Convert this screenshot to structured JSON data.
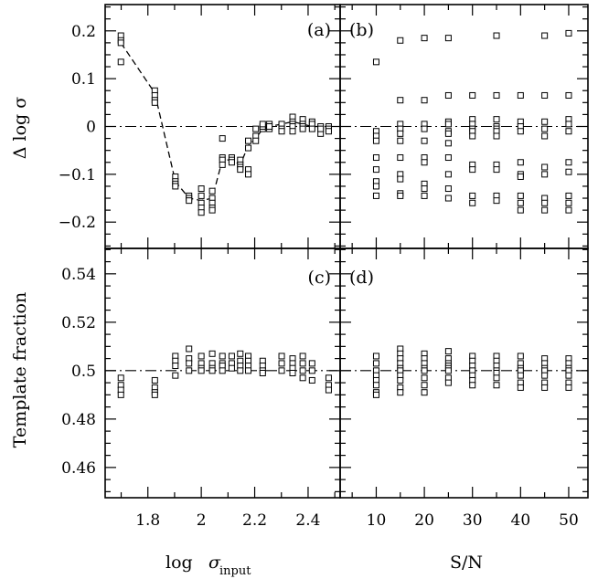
{
  "figure": {
    "x_bottom_left_label": "log",
    "x_bottom_left_symbol": "σ",
    "x_bottom_left_subscript": "input",
    "x_bottom_right_label": "S/N",
    "y_top_label": "Δ log σ",
    "y_bottom_label": "Template fraction"
  },
  "chart_data": [
    {
      "panel": "(a)",
      "type": "scatter",
      "marker": "open-square",
      "xlabel": "",
      "ylabel": "Δ log σ",
      "xlim": [
        1.64,
        2.52
      ],
      "ylim": [
        -0.255,
        0.255
      ],
      "xticks": [
        1.8,
        2.0,
        2.2,
        2.4
      ],
      "xtick_labels": [
        "",
        "",
        "",
        ""
      ],
      "yticks": [
        -0.2,
        -0.1,
        0,
        0.1,
        0.2
      ],
      "ytick_labels": [
        "−0.2",
        "−0.1",
        "0",
        "0.1",
        "0.2"
      ],
      "reference_line": {
        "y": 0,
        "style": "dash-dot"
      },
      "fit_line": {
        "style": "dashed",
        "x": [
          1.699,
          1.826,
          1.903,
          1.954,
          2.0,
          2.041,
          2.079,
          2.114,
          2.146,
          2.176,
          2.204,
          2.23,
          2.255,
          2.301,
          2.342,
          2.38,
          2.415,
          2.447,
          2.477
        ],
        "y": [
          0.175,
          0.07,
          -0.115,
          -0.15,
          -0.155,
          -0.15,
          -0.07,
          -0.07,
          -0.08,
          -0.04,
          -0.025,
          -0.005,
          0.0,
          0.005,
          0.01,
          0.005,
          0.0,
          0.0,
          0.0
        ]
      },
      "points": {
        "x": [
          1.699,
          1.699,
          1.699,
          1.699,
          1.826,
          1.826,
          1.826,
          1.826,
          1.903,
          1.903,
          1.903,
          1.903,
          1.954,
          1.954,
          1.954,
          2.0,
          2.0,
          2.0,
          2.0,
          2.0,
          2.041,
          2.041,
          2.041,
          2.041,
          2.041,
          2.079,
          2.079,
          2.079,
          2.079,
          2.114,
          2.114,
          2.114,
          2.146,
          2.146,
          2.146,
          2.146,
          2.176,
          2.176,
          2.176,
          2.176,
          2.204,
          2.204,
          2.204,
          2.23,
          2.23,
          2.23,
          2.255,
          2.255,
          2.255,
          2.301,
          2.301,
          2.301,
          2.301,
          2.342,
          2.342,
          2.342,
          2.342,
          2.342,
          2.38,
          2.38,
          2.38,
          2.38,
          2.415,
          2.415,
          2.415,
          2.447,
          2.447,
          2.447,
          2.477,
          2.477,
          2.477
        ],
        "y": [
          0.19,
          0.18,
          0.175,
          0.135,
          0.075,
          0.065,
          0.055,
          0.05,
          -0.105,
          -0.115,
          -0.12,
          -0.125,
          -0.145,
          -0.15,
          -0.155,
          -0.13,
          -0.145,
          -0.16,
          -0.17,
          -0.18,
          -0.135,
          -0.15,
          -0.16,
          -0.17,
          -0.175,
          -0.025,
          -0.065,
          -0.07,
          -0.08,
          -0.065,
          -0.07,
          -0.075,
          -0.07,
          -0.08,
          -0.085,
          -0.09,
          -0.03,
          -0.045,
          -0.09,
          -0.1,
          -0.02,
          -0.03,
          -0.005,
          -0.005,
          0.0,
          0.005,
          -0.005,
          0.005,
          0.0,
          0.0,
          0.005,
          -0.005,
          -0.01,
          0.02,
          0.01,
          0.005,
          0.0,
          -0.01,
          0.015,
          0.005,
          0.0,
          -0.005,
          0.01,
          0.005,
          -0.005,
          -0.015,
          0.0,
          -0.005,
          0.0,
          -0.005,
          -0.01
        ]
      }
    },
    {
      "panel": "(b)",
      "type": "scatter",
      "marker": "open-square",
      "xlabel": "",
      "ylabel": "",
      "xlim": [
        2.5,
        54
      ],
      "ylim": [
        -0.255,
        0.255
      ],
      "xticks": [
        10,
        20,
        30,
        40,
        50
      ],
      "xtick_labels": [
        "",
        "",
        "",
        "",
        ""
      ],
      "reference_line": {
        "y": 0,
        "style": "dash-dot"
      },
      "points": {
        "x": [
          10,
          10,
          10,
          10,
          10,
          10,
          10,
          10,
          10,
          15,
          15,
          15,
          15,
          15,
          15,
          15,
          15,
          15,
          15,
          15,
          20,
          20,
          20,
          20,
          20,
          20,
          20,
          20,
          20,
          20,
          25,
          25,
          25,
          25,
          25,
          25,
          25,
          25,
          25,
          25,
          25,
          30,
          30,
          30,
          30,
          30,
          30,
          30,
          30,
          30,
          30,
          35,
          35,
          35,
          35,
          35,
          35,
          35,
          35,
          35,
          35,
          35,
          40,
          40,
          40,
          40,
          40,
          40,
          40,
          40,
          40,
          40,
          45,
          45,
          45,
          45,
          45,
          45,
          45,
          45,
          45,
          45,
          50,
          50,
          50,
          50,
          50,
          50,
          50,
          50,
          50,
          50
        ],
        "y": [
          0.135,
          -0.01,
          -0.02,
          -0.03,
          -0.065,
          -0.09,
          -0.115,
          -0.125,
          -0.145,
          0.18,
          0.055,
          0.005,
          -0.005,
          -0.015,
          -0.03,
          -0.065,
          -0.1,
          -0.11,
          -0.14,
          -0.145,
          0.185,
          0.055,
          0.005,
          -0.005,
          -0.03,
          -0.065,
          -0.075,
          -0.12,
          -0.13,
          -0.145,
          0.185,
          0.065,
          0.01,
          0.005,
          -0.01,
          -0.015,
          -0.035,
          -0.065,
          -0.1,
          -0.13,
          -0.15,
          0.065,
          0.015,
          0.005,
          -0.005,
          -0.01,
          -0.02,
          -0.08,
          -0.09,
          -0.145,
          -0.16,
          0.19,
          0.065,
          0.015,
          0.0,
          -0.005,
          -0.01,
          -0.02,
          -0.08,
          -0.09,
          -0.145,
          -0.155,
          0.065,
          0.01,
          0.0,
          -0.01,
          -0.075,
          -0.1,
          -0.105,
          -0.145,
          -0.16,
          -0.175,
          0.19,
          0.065,
          0.01,
          -0.005,
          -0.02,
          -0.085,
          -0.1,
          -0.15,
          -0.16,
          -0.175,
          0.195,
          0.065,
          0.015,
          0.005,
          -0.01,
          -0.075,
          -0.095,
          -0.145,
          -0.16,
          -0.175
        ]
      }
    },
    {
      "panel": "(c)",
      "type": "scatter",
      "marker": "open-square",
      "xlabel": "log σinput",
      "ylabel": "Template fraction",
      "xlim": [
        1.64,
        2.52
      ],
      "ylim": [
        0.4475,
        0.5505
      ],
      "xticks": [
        1.8,
        2.0,
        2.2,
        2.4
      ],
      "xtick_labels": [
        "1.8",
        "2",
        "2.2",
        "2.4"
      ],
      "yticks": [
        0.46,
        0.48,
        0.5,
        0.52,
        0.54
      ],
      "ytick_labels": [
        "0.46",
        "0.48",
        "0.5",
        "0.52",
        "0.54"
      ],
      "reference_line": {
        "y": 0.5,
        "style": "dash-dot"
      },
      "points": {
        "x": [
          1.699,
          1.699,
          1.699,
          1.699,
          1.826,
          1.826,
          1.826,
          1.826,
          1.903,
          1.903,
          1.903,
          1.903,
          1.954,
          1.954,
          1.954,
          1.954,
          2.0,
          2.0,
          2.0,
          2.0,
          2.041,
          2.041,
          2.041,
          2.041,
          2.079,
          2.079,
          2.079,
          2.079,
          2.114,
          2.114,
          2.114,
          2.146,
          2.146,
          2.146,
          2.146,
          2.176,
          2.176,
          2.176,
          2.176,
          2.23,
          2.23,
          2.23,
          2.23,
          2.301,
          2.301,
          2.301,
          2.342,
          2.342,
          2.342,
          2.342,
          2.38,
          2.38,
          2.38,
          2.38,
          2.415,
          2.415,
          2.415,
          2.477,
          2.477,
          2.477
        ],
        "y": [
          0.497,
          0.494,
          0.492,
          0.49,
          0.496,
          0.493,
          0.491,
          0.49,
          0.506,
          0.504,
          0.502,
          0.498,
          0.509,
          0.505,
          0.503,
          0.5,
          0.506,
          0.503,
          0.501,
          0.5,
          0.507,
          0.503,
          0.501,
          0.5,
          0.506,
          0.503,
          0.502,
          0.5,
          0.506,
          0.503,
          0.501,
          0.507,
          0.504,
          0.502,
          0.5,
          0.506,
          0.504,
          0.502,
          0.5,
          0.504,
          0.502,
          0.5,
          0.499,
          0.506,
          0.503,
          0.5,
          0.505,
          0.503,
          0.501,
          0.499,
          0.506,
          0.503,
          0.5,
          0.497,
          0.503,
          0.5,
          0.496,
          0.497,
          0.494,
          0.492
        ]
      }
    },
    {
      "panel": "(d)",
      "type": "scatter",
      "marker": "open-square",
      "xlabel": "S/N",
      "ylabel": "",
      "xlim": [
        2.5,
        54
      ],
      "ylim": [
        0.4475,
        0.5505
      ],
      "xticks": [
        10,
        20,
        30,
        40,
        50
      ],
      "xtick_labels": [
        "10",
        "20",
        "30",
        "40",
        "50"
      ],
      "reference_line": {
        "y": 0.5,
        "style": "dash-dot"
      },
      "points": {
        "x": [
          10,
          10,
          10,
          10,
          10,
          10,
          10,
          10,
          15,
          15,
          15,
          15,
          15,
          15,
          15,
          15,
          15,
          15,
          20,
          20,
          20,
          20,
          20,
          20,
          20,
          20,
          25,
          25,
          25,
          25,
          25,
          25,
          25,
          25,
          30,
          30,
          30,
          30,
          30,
          30,
          30,
          35,
          35,
          35,
          35,
          35,
          35,
          35,
          40,
          40,
          40,
          40,
          40,
          40,
          40,
          45,
          45,
          45,
          45,
          45,
          45,
          45,
          50,
          50,
          50,
          50,
          50,
          50,
          50
        ],
        "y": [
          0.506,
          0.503,
          0.5,
          0.498,
          0.496,
          0.494,
          0.491,
          0.49,
          0.509,
          0.507,
          0.505,
          0.503,
          0.501,
          0.5,
          0.498,
          0.496,
          0.493,
          0.491,
          0.507,
          0.505,
          0.503,
          0.501,
          0.5,
          0.497,
          0.494,
          0.491,
          0.508,
          0.505,
          0.503,
          0.502,
          0.501,
          0.5,
          0.497,
          0.495,
          0.506,
          0.504,
          0.502,
          0.5,
          0.498,
          0.496,
          0.494,
          0.506,
          0.504,
          0.502,
          0.5,
          0.499,
          0.497,
          0.494,
          0.506,
          0.503,
          0.501,
          0.5,
          0.498,
          0.495,
          0.493,
          0.505,
          0.503,
          0.501,
          0.5,
          0.498,
          0.495,
          0.493,
          0.505,
          0.503,
          0.501,
          0.5,
          0.498,
          0.495,
          0.493
        ]
      }
    }
  ]
}
